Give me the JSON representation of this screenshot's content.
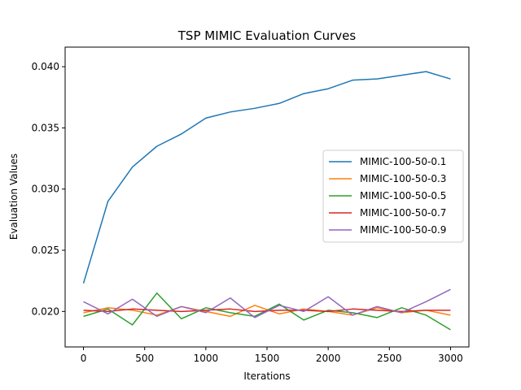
{
  "chart_data": {
    "type": "line",
    "title": "TSP MIMIC Evaluation Curves",
    "xlabel": "Iterations",
    "ylabel": "Evaluation Values",
    "xlim": [
      -150,
      3150
    ],
    "ylim": [
      0.0171,
      0.0416
    ],
    "xticks": [
      0,
      500,
      1000,
      1500,
      2000,
      2500,
      3000
    ],
    "xtick_labels": [
      "0",
      "500",
      "1000",
      "1500",
      "2000",
      "2500",
      "3000"
    ],
    "yticks": [
      0.02,
      0.025,
      0.03,
      0.035,
      0.04
    ],
    "ytick_labels": [
      "0.020",
      "0.025",
      "0.030",
      "0.035",
      "0.040"
    ],
    "grid": false,
    "legend_position": "center-right",
    "x": [
      0,
      200,
      400,
      600,
      800,
      1000,
      1200,
      1400,
      1600,
      1800,
      2000,
      2200,
      2400,
      2600,
      2800,
      3000
    ],
    "series": [
      {
        "name": "MIMIC-100-50-0.1",
        "color": "#1f77b4",
        "values": [
          0.0223,
          0.029,
          0.0318,
          0.0335,
          0.0345,
          0.0358,
          0.0363,
          0.0366,
          0.037,
          0.0378,
          0.0382,
          0.0389,
          0.039,
          0.0393,
          0.0396,
          0.039
        ]
      },
      {
        "name": "MIMIC-100-50-0.3",
        "color": "#ff7f0e",
        "values": [
          0.0199,
          0.0203,
          0.0201,
          0.0197,
          0.0204,
          0.02,
          0.0196,
          0.0205,
          0.0198,
          0.0202,
          0.02,
          0.0197,
          0.0203,
          0.0199,
          0.0201,
          0.0197
        ]
      },
      {
        "name": "MIMIC-100-50-0.5",
        "color": "#2ca02c",
        "values": [
          0.0196,
          0.0202,
          0.0189,
          0.0215,
          0.0194,
          0.0203,
          0.0199,
          0.0196,
          0.0206,
          0.0193,
          0.0201,
          0.0199,
          0.0195,
          0.0203,
          0.0197,
          0.0185
        ]
      },
      {
        "name": "MIMIC-100-50-0.7",
        "color": "#d62728",
        "values": [
          0.0201,
          0.02,
          0.0202,
          0.0201,
          0.02,
          0.0201,
          0.0202,
          0.02,
          0.0201,
          0.0201,
          0.02,
          0.0202,
          0.0201,
          0.02,
          0.0201,
          0.0201
        ]
      },
      {
        "name": "MIMIC-100-50-0.9",
        "color": "#9467bd",
        "values": [
          0.0208,
          0.0198,
          0.021,
          0.0196,
          0.0204,
          0.0199,
          0.0211,
          0.0195,
          0.0205,
          0.02,
          0.0212,
          0.0197,
          0.0204,
          0.0199,
          0.0208,
          0.0218
        ]
      }
    ]
  }
}
